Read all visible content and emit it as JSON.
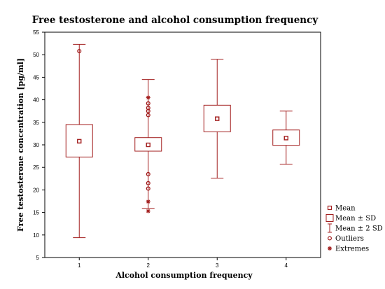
{
  "chart_data": {
    "type": "box",
    "title": "Free testosterone and alcohol consumption frequency",
    "xlabel": "Alcohol consumption frequency",
    "ylabel": "Free testosterone concentration [pg/ml]",
    "ylim": [
      5,
      55
    ],
    "yticks": [
      "5",
      "10",
      "15",
      "20",
      "25",
      "30",
      "35",
      "40",
      "45",
      "50",
      "55"
    ],
    "categories": [
      "1",
      "2",
      "3",
      "4"
    ],
    "series_color": "#a31f1f",
    "groups": [
      {
        "category": "1",
        "mean": 30.8,
        "sd_low": 27.3,
        "sd_high": 34.5,
        "sd2_low": 9.4,
        "sd2_high": 52.3,
        "outliers": [
          50.8
        ],
        "extremes": []
      },
      {
        "category": "2",
        "mean": 30.0,
        "sd_low": 28.6,
        "sd_high": 31.6,
        "sd2_low": 15.9,
        "sd2_high": 44.5,
        "outliers": [
          39.2,
          38.2,
          37.5,
          36.6,
          23.5,
          21.5,
          20.3
        ],
        "extremes": [
          40.5,
          17.4,
          15.3
        ]
      },
      {
        "category": "3",
        "mean": 35.8,
        "sd_low": 32.9,
        "sd_high": 38.8,
        "sd2_low": 22.6,
        "sd2_high": 49.0,
        "outliers": [],
        "extremes": []
      },
      {
        "category": "4",
        "mean": 31.5,
        "sd_low": 29.9,
        "sd_high": 33.3,
        "sd2_low": 25.7,
        "sd2_high": 37.5,
        "outliers": [],
        "extremes": []
      }
    ],
    "legend": {
      "placement": "bottom-right",
      "items": [
        {
          "key": "mean",
          "label": "Mean"
        },
        {
          "key": "sd",
          "label": "Mean ± SD"
        },
        {
          "key": "sd2",
          "label": "Mean ± 2 SD"
        },
        {
          "key": "outlier",
          "label": "Outliers"
        },
        {
          "key": "extreme",
          "label": "Extremes"
        }
      ]
    }
  }
}
